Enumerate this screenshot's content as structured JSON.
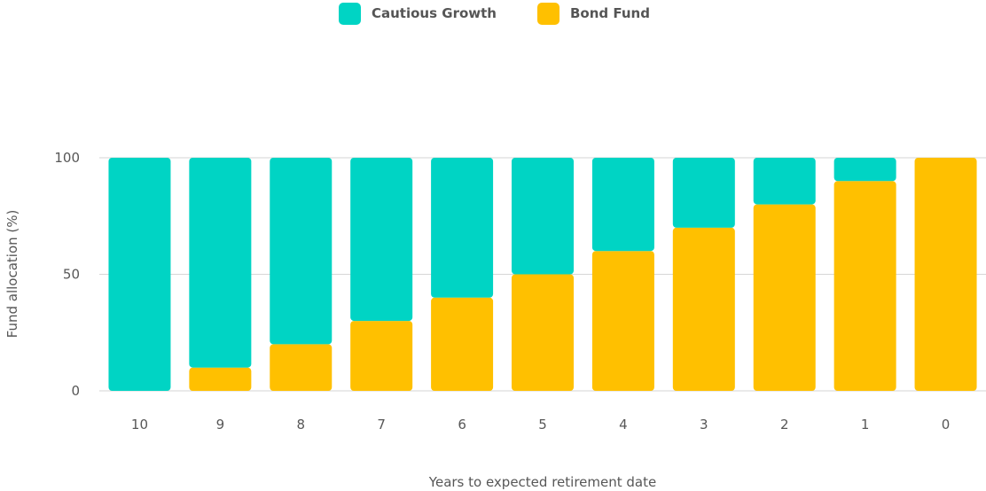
{
  "chart_data": {
    "type": "bar",
    "stacked": true,
    "categories": [
      "10",
      "9",
      "8",
      "7",
      "6",
      "5",
      "4",
      "3",
      "2",
      "1",
      "0"
    ],
    "series": [
      {
        "name": "Bond Fund",
        "values": [
          0,
          10,
          20,
          30,
          40,
          50,
          60,
          70,
          80,
          90,
          100
        ]
      },
      {
        "name": "Cautious Growth",
        "values": [
          100,
          90,
          80,
          70,
          60,
          50,
          40,
          30,
          20,
          10,
          0
        ]
      }
    ],
    "legend": [
      {
        "name": "Cautious Growth",
        "color": "#00D4C4"
      },
      {
        "name": "Bond Fund",
        "color": "#FFC000"
      }
    ],
    "colors": {
      "Cautious Growth": "#00D4C4",
      "Bond Fund": "#FFC000"
    },
    "xlabel": "Years to expected retirement date",
    "ylabel": "Fund allocation (%)",
    "ylim": [
      0,
      100
    ],
    "yticks": [
      0,
      50,
      100
    ],
    "grid": true,
    "legend_position": "top-center"
  }
}
